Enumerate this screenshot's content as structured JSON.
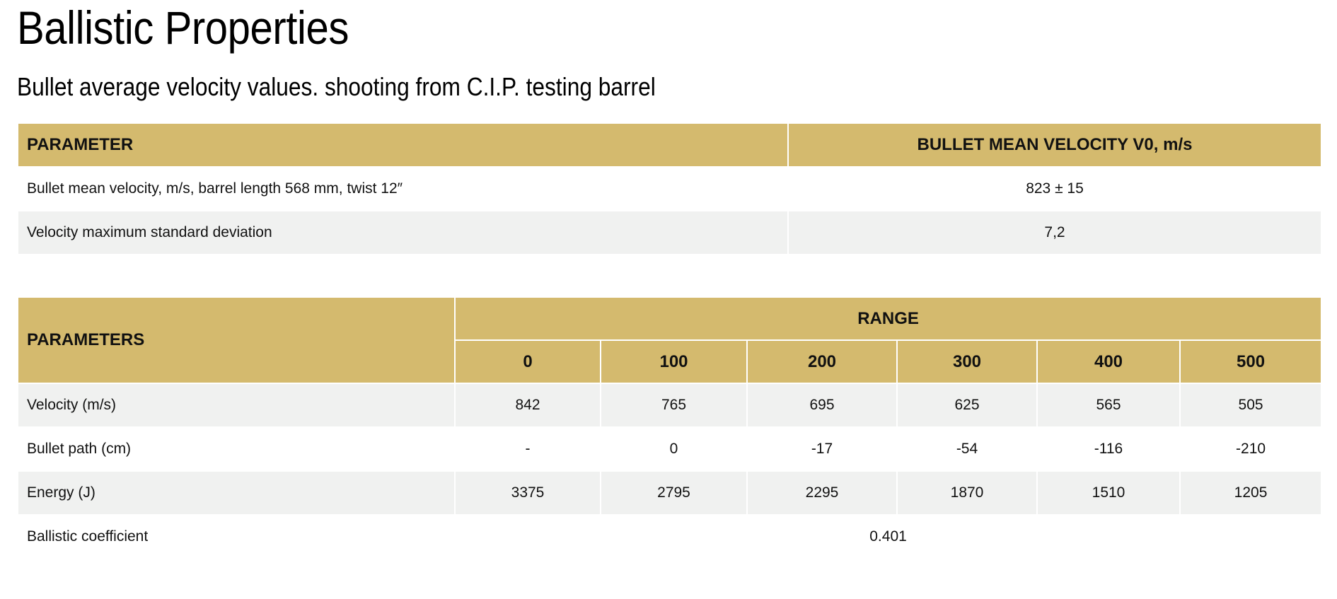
{
  "page": {
    "title": "Ballistic Properties",
    "subtitle": "Bullet average velocity values. shooting from C.I.P. testing barrel"
  },
  "velocity_table": {
    "headers": [
      "PARAMETER",
      "BULLET MEAN VELOCITY V0, m/s"
    ],
    "rows": [
      [
        "Bullet mean velocity, m/s, barrel length 568 mm, twist 12″",
        "823 ± 15"
      ],
      [
        "Velocity maximum standard deviation",
        "7,2"
      ]
    ]
  },
  "range_table": {
    "parameters_header": "PARAMETERS",
    "range_header": "RANGE",
    "ranges": [
      "0",
      "100",
      "200",
      "300",
      "400",
      "500"
    ],
    "rows": [
      {
        "label": "Velocity (m/s)",
        "values": [
          "842",
          "765",
          "695",
          "625",
          "565",
          "505"
        ]
      },
      {
        "label": "Bullet path (cm)",
        "values": [
          "-",
          "0",
          "-17",
          "-54",
          "-116",
          "-210"
        ]
      },
      {
        "label": "Energy (J)",
        "values": [
          "3375",
          "2795",
          "2295",
          "1870",
          "1510",
          "1205"
        ]
      }
    ],
    "coefficient": {
      "label": "Ballistic coefficient",
      "value": "0.401"
    }
  },
  "colors": {
    "header_bg": "#d4ba6e",
    "stripe_bg": "#f0f1f0"
  }
}
